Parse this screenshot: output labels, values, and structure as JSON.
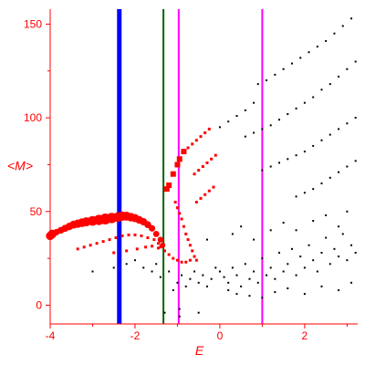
{
  "chart_data": {
    "type": "scatter",
    "title": "",
    "xlabel": "E",
    "ylabel": "<M>",
    "xlim": [
      -4,
      3.25
    ],
    "ylim": [
      -10,
      158
    ],
    "xticks": [
      -4,
      -2,
      0,
      2
    ],
    "yticks": [
      0,
      50,
      100,
      150
    ],
    "colors": {
      "axis": "#ff0000",
      "red_series": "#ff0000",
      "black_series": "#000000",
      "line_blue": "#0000ff",
      "line_green": "#006400",
      "line_magenta": "#ff00ff"
    },
    "vertical_lines": [
      {
        "x": -2.37,
        "color": "#0000ff",
        "width": "thick"
      },
      {
        "x": -1.33,
        "color": "#006400",
        "width": "thin"
      },
      {
        "x": -0.97,
        "color": "#ff00ff",
        "width": "thin"
      },
      {
        "x": 1.0,
        "color": "#ff00ff",
        "width": "thin"
      }
    ],
    "series": [
      {
        "color": "#ff0000",
        "marker": "large-red-circles",
        "points": [
          [
            -4.0,
            37
          ],
          [
            -3.95,
            38
          ],
          [
            -3.85,
            39
          ],
          [
            -3.75,
            40
          ],
          [
            -3.65,
            41
          ],
          [
            -3.55,
            42
          ],
          [
            -3.45,
            43
          ],
          [
            -3.35,
            43.5
          ],
          [
            -3.25,
            44
          ],
          [
            -3.15,
            44.5
          ],
          [
            -3.0,
            45
          ],
          [
            -2.85,
            45.5
          ],
          [
            -2.7,
            46
          ],
          [
            -2.55,
            46.5
          ],
          [
            -2.4,
            47
          ],
          [
            -2.3,
            47.5
          ],
          [
            -2.2,
            47.5
          ],
          [
            -2.1,
            47
          ],
          [
            -2.0,
            46.5
          ],
          [
            -1.9,
            45.5
          ],
          [
            -1.8,
            44.5
          ],
          [
            -1.7,
            43
          ],
          [
            -1.6,
            41
          ],
          [
            -1.5,
            38
          ],
          [
            -1.4,
            35
          ],
          [
            -1.35,
            32
          ]
        ]
      },
      {
        "color": "#ff0000",
        "marker": "small-red-squares",
        "points": [
          [
            -3.35,
            30
          ],
          [
            -3.2,
            31
          ],
          [
            -3.05,
            32
          ],
          [
            -2.9,
            33
          ],
          [
            -2.75,
            34
          ],
          [
            -2.6,
            35
          ],
          [
            -2.45,
            36
          ],
          [
            -2.3,
            37
          ],
          [
            -2.15,
            37.5
          ],
          [
            -2.0,
            37.5
          ],
          [
            -1.85,
            37
          ],
          [
            -1.7,
            36
          ],
          [
            -1.55,
            35
          ],
          [
            -1.45,
            33
          ],
          [
            -1.4,
            31
          ],
          [
            -2.5,
            28
          ],
          [
            -2.2,
            29
          ],
          [
            -1.95,
            30
          ],
          [
            -1.75,
            31
          ],
          [
            -1.6,
            31.5
          ],
          [
            -1.45,
            30.5
          ],
          [
            -1.3,
            29
          ],
          [
            -1.2,
            27
          ],
          [
            -1.1,
            25
          ],
          [
            -1.0,
            24
          ],
          [
            -0.9,
            23
          ],
          [
            -0.8,
            23
          ],
          [
            -0.7,
            24
          ]
        ]
      },
      {
        "color": "#ff0000",
        "marker": "red-upper-branch",
        "points": [
          [
            -1.25,
            62
          ],
          [
            -1.2,
            64
          ],
          [
            -1.1,
            70
          ],
          [
            -1.0,
            75
          ],
          [
            -0.95,
            78
          ],
          [
            -0.85,
            82
          ],
          [
            -0.75,
            84
          ],
          [
            -0.65,
            86
          ],
          [
            -0.55,
            88
          ],
          [
            -0.45,
            90
          ],
          [
            -0.35,
            92
          ],
          [
            -0.25,
            94
          ],
          [
            -1.05,
            55
          ],
          [
            -1.0,
            52
          ],
          [
            -0.95,
            49
          ],
          [
            -0.9,
            46
          ],
          [
            -0.85,
            42
          ],
          [
            -0.8,
            38
          ],
          [
            -0.75,
            35
          ],
          [
            -0.7,
            32
          ],
          [
            -0.65,
            29
          ],
          [
            -0.6,
            26
          ],
          [
            -0.55,
            24
          ],
          [
            -0.6,
            70
          ],
          [
            -0.5,
            72
          ],
          [
            -0.4,
            74
          ],
          [
            -0.3,
            76
          ],
          [
            -0.2,
            78
          ],
          [
            -0.1,
            80
          ],
          [
            -0.55,
            55
          ],
          [
            -0.45,
            57
          ],
          [
            -0.35,
            59
          ],
          [
            -0.25,
            61
          ],
          [
            -0.15,
            63
          ]
        ]
      },
      {
        "color": "#000000",
        "marker": "black-dots",
        "points": [
          [
            0.9,
            118
          ],
          [
            1.1,
            120
          ],
          [
            1.3,
            123
          ],
          [
            1.5,
            126
          ],
          [
            1.7,
            129
          ],
          [
            1.9,
            132
          ],
          [
            2.1,
            135
          ],
          [
            2.3,
            138
          ],
          [
            2.5,
            141
          ],
          [
            2.7,
            145
          ],
          [
            2.9,
            149
          ],
          [
            3.1,
            153
          ],
          [
            0.0,
            95
          ],
          [
            0.2,
            98
          ],
          [
            0.4,
            101
          ],
          [
            0.6,
            104
          ],
          [
            0.8,
            108
          ],
          [
            0.6,
            90
          ],
          [
            0.8,
            92
          ],
          [
            1.0,
            94
          ],
          [
            1.2,
            96
          ],
          [
            1.4,
            99
          ],
          [
            1.6,
            102
          ],
          [
            1.8,
            105
          ],
          [
            2.0,
            108
          ],
          [
            2.2,
            111
          ],
          [
            2.4,
            115
          ],
          [
            2.6,
            118
          ],
          [
            2.8,
            122
          ],
          [
            3.0,
            126
          ],
          [
            3.2,
            130
          ],
          [
            1.0,
            72
          ],
          [
            1.2,
            74
          ],
          [
            1.4,
            76
          ],
          [
            1.6,
            78
          ],
          [
            1.8,
            80
          ],
          [
            2.0,
            82
          ],
          [
            2.2,
            85
          ],
          [
            2.4,
            88
          ],
          [
            2.6,
            91
          ],
          [
            2.8,
            94
          ],
          [
            3.0,
            97
          ],
          [
            3.2,
            100
          ],
          [
            1.8,
            58
          ],
          [
            2.0,
            60
          ],
          [
            2.2,
            62
          ],
          [
            2.4,
            65
          ],
          [
            2.6,
            68
          ],
          [
            2.8,
            71
          ],
          [
            3.0,
            74
          ],
          [
            3.2,
            77
          ],
          [
            0.0,
            18
          ],
          [
            0.1,
            15
          ],
          [
            0.2,
            12
          ],
          [
            0.3,
            20
          ],
          [
            0.4,
            16
          ],
          [
            0.5,
            10
          ],
          [
            0.6,
            22
          ],
          [
            0.7,
            14
          ],
          [
            0.8,
            18
          ],
          [
            0.9,
            12
          ],
          [
            1.0,
            25
          ],
          [
            1.1,
            16
          ],
          [
            1.2,
            20
          ],
          [
            1.3,
            14
          ],
          [
            1.4,
            28
          ],
          [
            1.5,
            18
          ],
          [
            1.6,
            22
          ],
          [
            1.7,
            30
          ],
          [
            1.8,
            16
          ],
          [
            1.9,
            26
          ],
          [
            2.0,
            20
          ],
          [
            2.1,
            32
          ],
          [
            2.2,
            24
          ],
          [
            2.3,
            18
          ],
          [
            2.4,
            28
          ],
          [
            2.5,
            36
          ],
          [
            2.6,
            22
          ],
          [
            2.7,
            30
          ],
          [
            2.8,
            26
          ],
          [
            2.9,
            38
          ],
          [
            3.0,
            24
          ],
          [
            3.1,
            32
          ],
          [
            3.2,
            28
          ],
          [
            -0.2,
            14
          ],
          [
            -0.1,
            20
          ],
          [
            -0.3,
            10
          ],
          [
            -0.4,
            16
          ],
          [
            -0.5,
            12
          ],
          [
            -0.6,
            18
          ],
          [
            -0.7,
            14
          ],
          [
            -0.8,
            10
          ],
          [
            -0.9,
            16
          ],
          [
            -1.0,
            12
          ],
          [
            -1.1,
            8
          ],
          [
            -1.2,
            18
          ],
          [
            -1.5,
            22
          ],
          [
            -1.8,
            20
          ],
          [
            -2.0,
            24
          ],
          [
            -2.2,
            22
          ],
          [
            -2.5,
            20
          ],
          [
            -3.0,
            18
          ],
          [
            -1.6,
            18
          ],
          [
            -1.4,
            15
          ],
          [
            -0.3,
            35
          ],
          [
            0.3,
            38
          ],
          [
            0.5,
            42
          ],
          [
            0.8,
            35
          ],
          [
            1.2,
            40
          ],
          [
            1.5,
            44
          ],
          [
            1.8,
            40
          ],
          [
            2.2,
            45
          ],
          [
            2.5,
            48
          ],
          [
            2.8,
            42
          ],
          [
            3.0,
            50
          ],
          [
            0.2,
            8
          ],
          [
            0.4,
            6
          ],
          [
            0.7,
            5
          ],
          [
            1.0,
            4
          ],
          [
            1.3,
            7
          ],
          [
            1.6,
            9
          ],
          [
            2.0,
            6
          ],
          [
            2.4,
            10
          ],
          [
            2.8,
            8
          ],
          [
            3.1,
            12
          ],
          [
            -0.95,
            -2
          ],
          [
            -0.95,
            -6
          ],
          [
            -0.5,
            -4
          ],
          [
            -1.3,
            -4
          ]
        ]
      }
    ]
  }
}
